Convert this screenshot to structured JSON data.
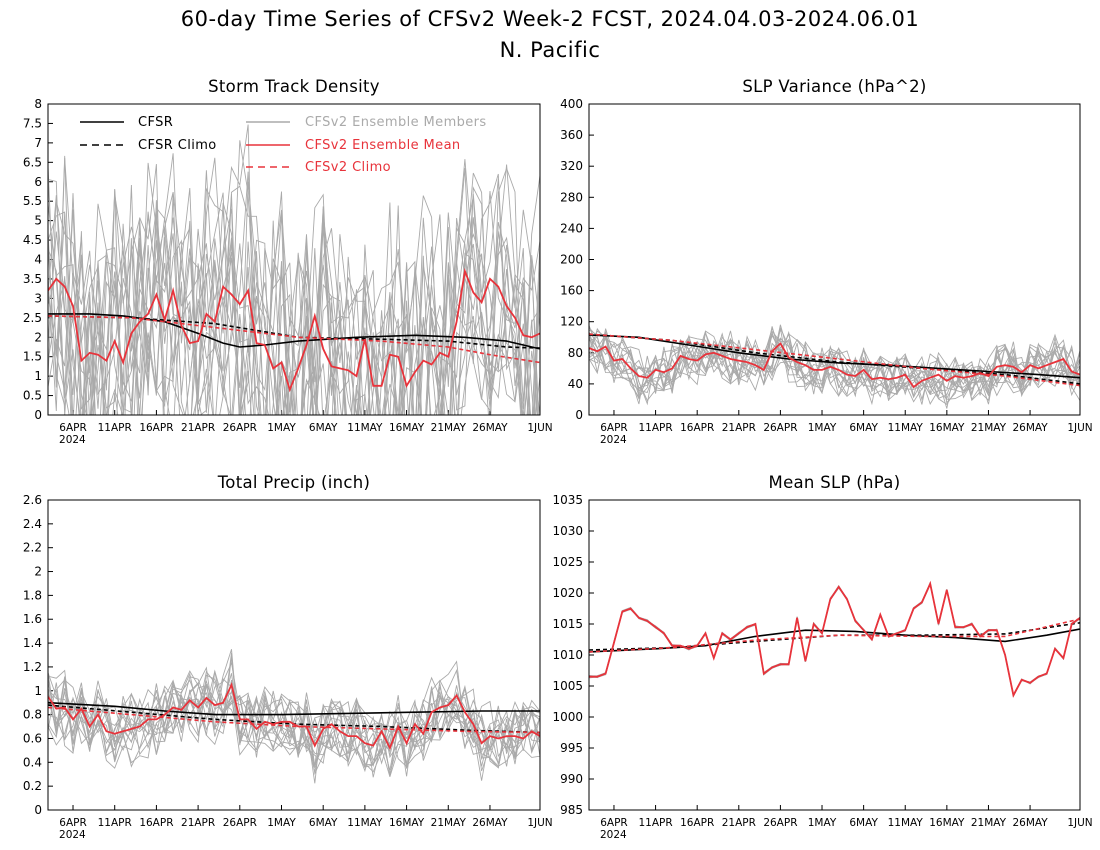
{
  "figure": {
    "title": "60-day Time Series of CFSv2 Week-2 FCST, 2024.04.03-2024.06.01",
    "subtitle": "N. Pacific"
  },
  "colors": {
    "cfsr": "#000000",
    "cfsr_climo": "#000000",
    "members": "#aaaaaa",
    "ens_mean": "#e8333b",
    "cfsv2_climo": "#e8333b"
  },
  "x_axis": {
    "tick_labels": [
      "6APR",
      "11APR",
      "16APR",
      "21APR",
      "26APR",
      "1MAY",
      "6MAY",
      "11MAY",
      "16MAY",
      "21MAY",
      "26MAY",
      "1JUN"
    ],
    "tick_days": [
      3,
      8,
      13,
      18,
      23,
      28,
      33,
      38,
      43,
      48,
      53,
      59
    ],
    "year_label": "2024",
    "range_days": [
      0,
      59
    ]
  },
  "legend": {
    "cfsr": "CFSR",
    "cfsr_climo": "CFSR Climo",
    "members": "CFSv2 Ensemble Members",
    "ens_mean": "CFSv2 Ensemble Mean",
    "cfsv2_climo": "CFSv2 Climo"
  },
  "chart_data": [
    {
      "type": "line",
      "title": "Storm Track Density",
      "ylim": [
        0,
        8
      ],
      "yticks": [
        0,
        0.5,
        1,
        1.5,
        2,
        2.5,
        3,
        3.5,
        4,
        4.5,
        5,
        5.5,
        6,
        6.5,
        7,
        7.5,
        8
      ],
      "ytick_labels": [
        "0",
        "0.5",
        "1",
        "1.5",
        "2",
        "2.5",
        "3",
        "3.5",
        "4",
        "4.5",
        "5",
        "5.5",
        "6",
        "6.5",
        "7",
        "7.5",
        "8"
      ],
      "member_count": 16,
      "series": [
        {
          "name": "CFSR",
          "role": "cfsr",
          "x": [
            0,
            5,
            9,
            14,
            18,
            21,
            23,
            26,
            30,
            37,
            44,
            50,
            55,
            59
          ],
          "y": [
            2.6,
            2.6,
            2.55,
            2.4,
            2.1,
            1.85,
            1.75,
            1.8,
            1.9,
            2.0,
            2.05,
            2.0,
            1.9,
            1.7
          ]
        },
        {
          "name": "CFSR Climo",
          "role": "cfsr_climo",
          "x": [
            0,
            10,
            20,
            30,
            40,
            48,
            55,
            59
          ],
          "y": [
            2.55,
            2.5,
            2.35,
            2.0,
            1.95,
            1.9,
            1.75,
            1.72
          ]
        },
        {
          "name": "CFSv2 Ensemble Mean",
          "role": "ens_mean",
          "x": [
            0,
            1,
            2,
            3,
            4,
            5,
            6,
            7,
            8,
            9,
            10,
            11,
            12,
            13,
            14,
            15,
            16,
            17,
            18,
            19,
            20,
            21,
            22,
            23,
            24,
            25,
            26,
            27,
            28,
            29,
            30,
            31,
            32,
            33,
            34,
            35,
            36,
            37,
            38,
            39,
            40,
            41,
            42,
            43,
            44,
            45,
            46,
            47,
            48,
            49,
            50,
            51,
            52,
            53,
            54,
            55,
            56,
            57,
            58,
            59
          ],
          "y": [
            3.2,
            3.5,
            3.3,
            2.8,
            1.4,
            1.6,
            1.55,
            1.4,
            1.9,
            1.35,
            2.1,
            2.4,
            2.6,
            3.1,
            2.45,
            3.2,
            2.3,
            1.85,
            1.9,
            2.6,
            2.4,
            3.3,
            3.1,
            2.85,
            3.2,
            1.85,
            1.8,
            1.2,
            1.35,
            0.65,
            1.2,
            1.8,
            2.55,
            1.7,
            1.25,
            1.2,
            1.15,
            1.0,
            1.95,
            0.75,
            0.75,
            1.55,
            1.5,
            0.75,
            1.1,
            1.4,
            1.3,
            1.6,
            1.5,
            2.4,
            3.7,
            3.15,
            2.9,
            3.5,
            3.3,
            2.8,
            2.5,
            2.05,
            2.0,
            2.1
          ]
        },
        {
          "name": "CFSv2 Climo",
          "role": "cfsv2_climo",
          "x": [
            0,
            10,
            20,
            30,
            40,
            48,
            53,
            59
          ],
          "y": [
            2.55,
            2.5,
            2.25,
            2.0,
            1.9,
            1.75,
            1.55,
            1.35
          ]
        }
      ]
    },
    {
      "type": "line",
      "title": "SLP Variance (hPa^2)",
      "ylim": [
        0,
        400
      ],
      "yticks": [
        0,
        40,
        80,
        120,
        160,
        200,
        240,
        280,
        320,
        360,
        400
      ],
      "ytick_labels": [
        "0",
        "40",
        "80",
        "120",
        "160",
        "200",
        "240",
        "280",
        "320",
        "360",
        "400"
      ],
      "member_count": 16,
      "series": [
        {
          "name": "CFSR",
          "role": "cfsr",
          "x": [
            0,
            6,
            12,
            18,
            24,
            30,
            36,
            42,
            48,
            54,
            59
          ],
          "y": [
            103,
            100,
            90,
            80,
            72,
            67,
            64,
            60,
            56,
            52,
            48
          ]
        },
        {
          "name": "CFSR Climo",
          "role": "cfsr_climo",
          "x": [
            0,
            10,
            20,
            30,
            40,
            50,
            59
          ],
          "y": [
            104,
            96,
            80,
            68,
            60,
            52,
            40
          ]
        },
        {
          "name": "CFSv2 Ensemble Mean",
          "role": "ens_mean",
          "x": [
            0,
            1,
            2,
            3,
            4,
            5,
            6,
            7,
            8,
            9,
            10,
            11,
            12,
            13,
            14,
            15,
            16,
            17,
            18,
            19,
            20,
            21,
            22,
            23,
            24,
            25,
            26,
            27,
            28,
            29,
            30,
            31,
            32,
            33,
            34,
            35,
            36,
            37,
            38,
            39,
            40,
            41,
            42,
            43,
            44,
            45,
            46,
            47,
            48,
            49,
            50,
            51,
            52,
            53,
            54,
            55,
            56,
            57,
            58,
            59
          ],
          "y": [
            86,
            82,
            88,
            70,
            72,
            60,
            50,
            48,
            58,
            55,
            60,
            76,
            72,
            70,
            78,
            80,
            76,
            72,
            70,
            68,
            64,
            58,
            82,
            92,
            74,
            68,
            64,
            58,
            58,
            62,
            58,
            52,
            50,
            58,
            46,
            48,
            46,
            48,
            52,
            36,
            44,
            48,
            52,
            44,
            50,
            48,
            50,
            54,
            50,
            62,
            64,
            62,
            55,
            64,
            60,
            64,
            68,
            72,
            56,
            52
          ]
        },
        {
          "name": "CFSv2 Climo",
          "role": "cfsv2_climo",
          "x": [
            0,
            10,
            20,
            30,
            40,
            50,
            59
          ],
          "y": [
            104,
            96,
            84,
            72,
            60,
            50,
            38
          ]
        }
      ]
    },
    {
      "type": "line",
      "title": "Total Precip (inch)",
      "ylim": [
        0,
        2.6
      ],
      "yticks": [
        0,
        0.2,
        0.4,
        0.6,
        0.8,
        1,
        1.2,
        1.4,
        1.6,
        1.8,
        2,
        2.2,
        2.4,
        2.6
      ],
      "ytick_labels": [
        "0",
        "0.2",
        "0.4",
        "0.6",
        "0.8",
        "1",
        "1.2",
        "1.4",
        "1.6",
        "1.8",
        "2",
        "2.2",
        "2.4",
        "2.6"
      ],
      "member_count": 16,
      "series": [
        {
          "name": "CFSR",
          "role": "cfsr",
          "x": [
            0,
            8,
            14,
            20,
            28,
            36,
            44,
            52,
            59
          ],
          "y": [
            0.9,
            0.87,
            0.83,
            0.8,
            0.8,
            0.81,
            0.82,
            0.83,
            0.83
          ]
        },
        {
          "name": "CFSR Climo",
          "role": "cfsr_climo",
          "x": [
            0,
            10,
            20,
            30,
            40,
            50,
            59
          ],
          "y": [
            0.88,
            0.82,
            0.76,
            0.72,
            0.7,
            0.67,
            0.65
          ]
        },
        {
          "name": "CFSv2 Ensemble Mean",
          "role": "ens_mean",
          "x": [
            0,
            1,
            2,
            3,
            4,
            5,
            6,
            7,
            8,
            9,
            10,
            11,
            12,
            13,
            14,
            15,
            16,
            17,
            18,
            19,
            20,
            21,
            22,
            23,
            24,
            25,
            26,
            27,
            28,
            29,
            30,
            31,
            32,
            33,
            34,
            35,
            36,
            37,
            38,
            39,
            40,
            41,
            42,
            43,
            44,
            45,
            46,
            47,
            48,
            49,
            50,
            51,
            52,
            53,
            54,
            55,
            56,
            57,
            58,
            59
          ],
          "y": [
            0.95,
            0.85,
            0.86,
            0.76,
            0.85,
            0.7,
            0.8,
            0.66,
            0.64,
            0.66,
            0.68,
            0.7,
            0.76,
            0.76,
            0.8,
            0.86,
            0.84,
            0.92,
            0.86,
            0.94,
            0.88,
            0.9,
            1.05,
            0.76,
            0.76,
            0.68,
            0.74,
            0.72,
            0.74,
            0.74,
            0.7,
            0.7,
            0.54,
            0.68,
            0.72,
            0.66,
            0.62,
            0.62,
            0.56,
            0.54,
            0.66,
            0.52,
            0.7,
            0.56,
            0.72,
            0.64,
            0.82,
            0.86,
            0.88,
            0.96,
            0.82,
            0.72,
            0.56,
            0.62,
            0.6,
            0.62,
            0.62,
            0.6,
            0.66,
            0.62
          ]
        },
        {
          "name": "CFSv2 Climo",
          "role": "cfsv2_climo",
          "x": [
            0,
            10,
            20,
            30,
            40,
            50,
            59
          ],
          "y": [
            0.86,
            0.8,
            0.74,
            0.7,
            0.68,
            0.66,
            0.65
          ]
        }
      ]
    },
    {
      "type": "line",
      "title": "Mean SLP (hPa)",
      "ylim": [
        985,
        1035
      ],
      "yticks": [
        985,
        990,
        995,
        1000,
        1005,
        1010,
        1015,
        1020,
        1025,
        1030,
        1035
      ],
      "ytick_labels": [
        "985",
        "990",
        "995",
        "1000",
        "1005",
        "1010",
        "1015",
        "1020",
        "1025",
        "1030",
        "1035"
      ],
      "member_count": 16,
      "series": [
        {
          "name": "CFSR",
          "role": "cfsr",
          "x": [
            0,
            8,
            14,
            20,
            26,
            32,
            38,
            44,
            50,
            55,
            59
          ],
          "y": [
            1010.5,
            1011,
            1011.5,
            1013,
            1014,
            1013.8,
            1013.2,
            1012.8,
            1012.2,
            1013.2,
            1014.2
          ]
        },
        {
          "name": "CFSR Climo",
          "role": "cfsr_climo",
          "x": [
            0,
            10,
            20,
            30,
            40,
            50,
            59
          ],
          "y": [
            1010.8,
            1011.2,
            1012.2,
            1013.2,
            1013.2,
            1013.4,
            1015.2
          ]
        },
        {
          "name": "CFSv2 Ensemble Mean",
          "role": "ens_mean",
          "x": [
            0,
            1,
            2,
            3,
            4,
            5,
            6,
            7,
            8,
            9,
            10,
            11,
            12,
            13,
            14,
            15,
            16,
            17,
            18,
            19,
            20,
            21,
            22,
            23,
            24,
            25,
            26,
            27,
            28,
            29,
            30,
            31,
            32,
            33,
            34,
            35,
            36,
            37,
            38,
            39,
            40,
            41,
            42,
            43,
            44,
            45,
            46,
            47,
            48,
            49,
            50,
            51,
            52,
            53,
            54,
            55,
            56,
            57,
            58,
            59
          ],
          "y": [
            1006.5,
            1006.5,
            1007,
            1012,
            1017,
            1017.5,
            1016,
            1015.5,
            1014.5,
            1013.5,
            1011.5,
            1011.5,
            1011,
            1011.5,
            1013.5,
            1009.5,
            1013.5,
            1012.5,
            1013.5,
            1014.5,
            1015,
            1007,
            1008,
            1008.5,
            1008.5,
            1016,
            1009,
            1015,
            1013.5,
            1019,
            1021,
            1019,
            1015.5,
            1014,
            1012.5,
            1016.5,
            1013,
            1013.5,
            1014,
            1017.5,
            1018.5,
            1021.5,
            1015,
            1020.5,
            1014.5,
            1014.5,
            1015,
            1013,
            1014,
            1014,
            1010,
            1003.5,
            1006,
            1005.5,
            1006.5,
            1007,
            1011,
            1009.5,
            1015,
            1016
          ]
        },
        {
          "name": "CFSv2 Climo",
          "role": "cfsv2_climo",
          "x": [
            0,
            10,
            20,
            30,
            40,
            50,
            59
          ],
          "y": [
            1010.5,
            1011.2,
            1012.4,
            1013.2,
            1013,
            1013,
            1015.8
          ]
        }
      ]
    }
  ]
}
